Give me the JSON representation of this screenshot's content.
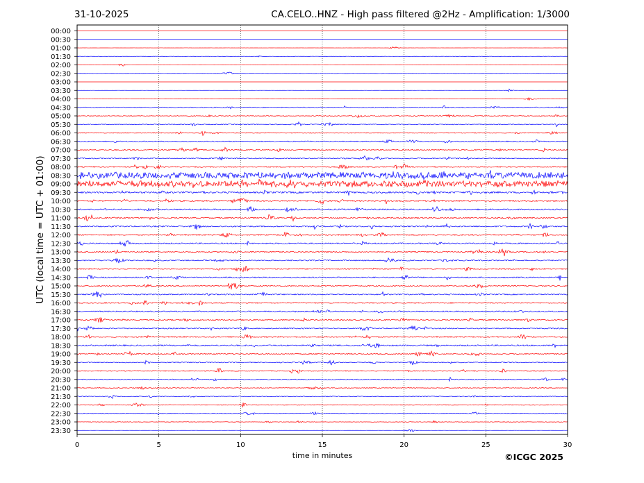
{
  "header": {
    "date": "31-10-2025",
    "title": "CA.CELO..HNZ - High pass filtered @2Hz - Amplification: 1/3000"
  },
  "footer": {
    "copyright": "©ICGC 2025"
  },
  "chart_data": {
    "type": "line",
    "title": "CA.CELO..HNZ - High pass filtered @2Hz - Amplification: 1/3000",
    "xlabel": "time in minutes",
    "ylabel": "UTC (local time = UTC + 01:00)",
    "xlim": [
      0,
      30
    ],
    "xticks": [
      0,
      5,
      10,
      15,
      20,
      25,
      30
    ],
    "grid": "vertical dotted lines at 5-minute intervals",
    "row_interval_minutes": 30,
    "row_colors": [
      "#ff0000",
      "#0000ff"
    ],
    "series": [
      {
        "label": "00:00",
        "color": "#ff0000",
        "activity": 0.0
      },
      {
        "label": "00:30",
        "color": "#0000ff",
        "activity": 0.0
      },
      {
        "label": "01:00",
        "color": "#ff0000",
        "activity": 0.05
      },
      {
        "label": "01:30",
        "color": "#0000ff",
        "activity": 0.1
      },
      {
        "label": "02:00",
        "color": "#ff0000",
        "activity": 0.05
      },
      {
        "label": "02:30",
        "color": "#0000ff",
        "activity": 0.1
      },
      {
        "label": "03:00",
        "color": "#ff0000",
        "activity": 0.0
      },
      {
        "label": "03:30",
        "color": "#0000ff",
        "activity": 0.05
      },
      {
        "label": "04:00",
        "color": "#ff0000",
        "activity": 0.1
      },
      {
        "label": "04:30",
        "color": "#0000ff",
        "activity": 0.35
      },
      {
        "label": "05:00",
        "color": "#ff0000",
        "activity": 0.3
      },
      {
        "label": "05:30",
        "color": "#0000ff",
        "activity": 0.35
      },
      {
        "label": "06:00",
        "color": "#ff0000",
        "activity": 0.35
      },
      {
        "label": "06:30",
        "color": "#0000ff",
        "activity": 0.4
      },
      {
        "label": "07:00",
        "color": "#ff0000",
        "activity": 0.45
      },
      {
        "label": "07:30",
        "color": "#0000ff",
        "activity": 0.45
      },
      {
        "label": "08:00",
        "color": "#ff0000",
        "activity": 0.5
      },
      {
        "label": "08:30",
        "color": "#0000ff",
        "activity": 0.85
      },
      {
        "label": "09:00",
        "color": "#ff0000",
        "activity": 0.85
      },
      {
        "label": "09:30",
        "color": "#0000ff",
        "activity": 0.75
      },
      {
        "label": "10:00",
        "color": "#ff0000",
        "activity": 0.65
      },
      {
        "label": "10:30",
        "color": "#0000ff",
        "activity": 0.55
      },
      {
        "label": "11:00",
        "color": "#ff0000",
        "activity": 0.55
      },
      {
        "label": "11:30",
        "color": "#0000ff",
        "activity": 0.55
      },
      {
        "label": "12:00",
        "color": "#ff0000",
        "activity": 0.55
      },
      {
        "label": "12:30",
        "color": "#0000ff",
        "activity": 0.55
      },
      {
        "label": "13:00",
        "color": "#ff0000",
        "activity": 0.5
      },
      {
        "label": "13:30",
        "color": "#0000ff",
        "activity": 0.5
      },
      {
        "label": "14:00",
        "color": "#ff0000",
        "activity": 0.5
      },
      {
        "label": "14:30",
        "color": "#0000ff",
        "activity": 0.5
      },
      {
        "label": "15:00",
        "color": "#ff0000",
        "activity": 0.45
      },
      {
        "label": "15:30",
        "color": "#0000ff",
        "activity": 0.5
      },
      {
        "label": "16:00",
        "color": "#ff0000",
        "activity": 0.5
      },
      {
        "label": "16:30",
        "color": "#0000ff",
        "activity": 0.5
      },
      {
        "label": "17:00",
        "color": "#ff0000",
        "activity": 0.5
      },
      {
        "label": "17:30",
        "color": "#0000ff",
        "activity": 0.5
      },
      {
        "label": "18:00",
        "color": "#ff0000",
        "activity": 0.55
      },
      {
        "label": "18:30",
        "color": "#0000ff",
        "activity": 0.6
      },
      {
        "label": "19:00",
        "color": "#ff0000",
        "activity": 0.45
      },
      {
        "label": "19:30",
        "color": "#0000ff",
        "activity": 0.4
      },
      {
        "label": "20:00",
        "color": "#ff0000",
        "activity": 0.4
      },
      {
        "label": "20:30",
        "color": "#0000ff",
        "activity": 0.35
      },
      {
        "label": "21:00",
        "color": "#ff0000",
        "activity": 0.3
      },
      {
        "label": "21:30",
        "color": "#0000ff",
        "activity": 0.3
      },
      {
        "label": "22:00",
        "color": "#ff0000",
        "activity": 0.3
      },
      {
        "label": "22:30",
        "color": "#0000ff",
        "activity": 0.25
      },
      {
        "label": "23:00",
        "color": "#ff0000",
        "activity": 0.2
      },
      {
        "label": "23:30",
        "color": "#0000ff",
        "activity": 0.05
      }
    ]
  }
}
